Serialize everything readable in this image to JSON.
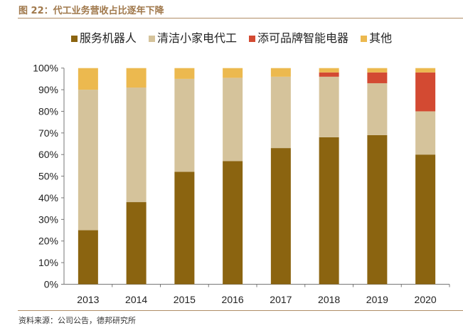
{
  "title": "图 22：代工业务营收占比逐年下降",
  "source": "资料来源：公司公告，德邦研究所",
  "chart_data": {
    "type": "bar",
    "stacked": true,
    "categories": [
      "2013",
      "2014",
      "2015",
      "2016",
      "2017",
      "2018",
      "2019",
      "2020"
    ],
    "series": [
      {
        "name": "服务机器人",
        "color": "#8b6410",
        "values": [
          25,
          38,
          52,
          57,
          63,
          68,
          69,
          60
        ]
      },
      {
        "name": "清洁小家电代工",
        "color": "#d5c39b",
        "values": [
          65,
          53,
          43,
          38.5,
          33,
          28,
          24,
          20
        ]
      },
      {
        "name": "添可品牌智能电器",
        "color": "#d34a32",
        "values": [
          0,
          0,
          0,
          0,
          0,
          2,
          5,
          18
        ]
      },
      {
        "name": "其他",
        "color": "#ecb94f",
        "values": [
          10,
          9,
          5,
          4.5,
          4,
          2,
          2,
          2
        ]
      }
    ],
    "yticks": [
      "0%",
      "10%",
      "20%",
      "30%",
      "40%",
      "50%",
      "60%",
      "70%",
      "80%",
      "90%",
      "100%"
    ],
    "ylim": [
      0,
      100
    ],
    "legend": "top",
    "grid": false
  }
}
